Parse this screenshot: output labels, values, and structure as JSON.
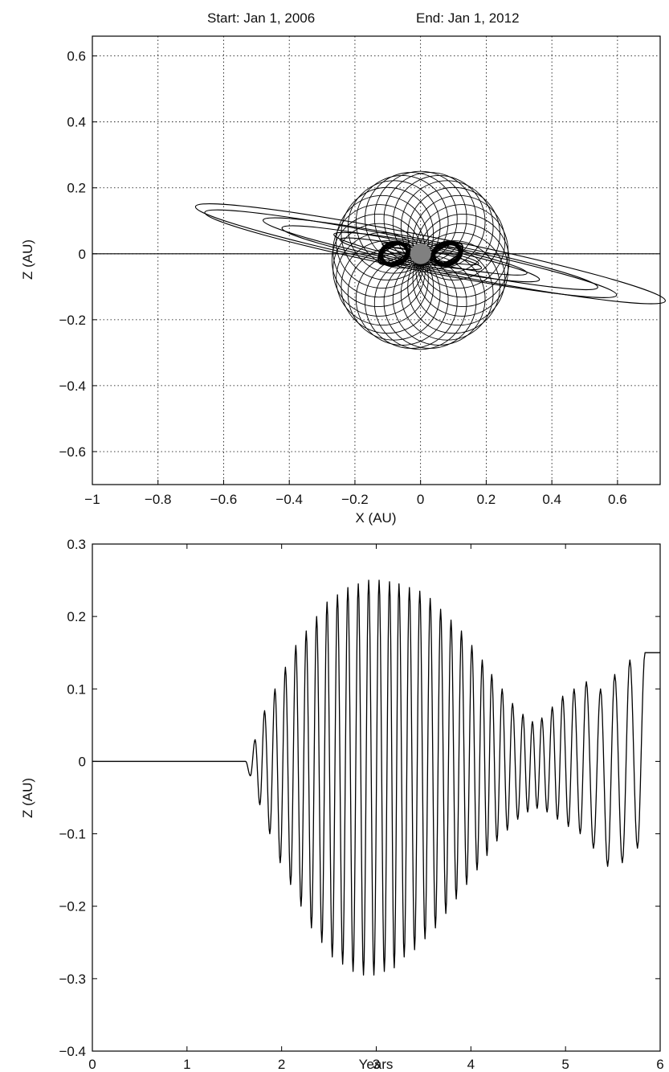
{
  "header": {
    "start": "Start: Jan 1, 2006",
    "end": "End: Jan 1, 2012"
  },
  "chart_data": [
    {
      "type": "line",
      "xlabel": "X (AU)",
      "ylabel": "Z (AU)",
      "xlim": [
        -1.0,
        0.73
      ],
      "ylim": [
        -0.7,
        0.66
      ],
      "xticks": [
        -1,
        -0.8,
        -0.6,
        -0.4,
        -0.2,
        0,
        0.2,
        0.4,
        0.6
      ],
      "xtick_labels": [
        "−1",
        "−0.8",
        "−0.6",
        "−0.4",
        "−0.2",
        "0",
        "0.2",
        "0.4",
        "0.6"
      ],
      "yticks": [
        -0.6,
        -0.4,
        -0.2,
        0,
        0.2,
        0.4,
        0.6
      ],
      "ytick_labels": [
        "−0.6",
        "−0.4",
        "−0.2",
        "0",
        "0.2",
        "0.4",
        "0.6"
      ],
      "grid": true,
      "grid_style": "dotted",
      "series": [
        {
          "name": "",
          "kind": "polar-rosette",
          "center": [
            0,
            -0.02
          ],
          "outer_radius": 0.27,
          "loops": 28,
          "color": "#000000"
        },
        {
          "name": "",
          "kind": "spiral-ellipses",
          "line_points": [
            [
              -0.73,
              0.15
            ],
            [
              0.72,
              -0.14
            ]
          ],
          "color": "#000000"
        }
      ],
      "central_body": {
        "x": 0,
        "y": 0,
        "color": "#808080"
      },
      "color_line": "#000000"
    },
    {
      "type": "line",
      "xlabel": "Years",
      "ylabel": "Z (AU)",
      "xlim": [
        0,
        6
      ],
      "ylim": [
        -0.4,
        0.3
      ],
      "xticks": [
        0,
        1,
        2,
        3,
        4,
        5,
        6
      ],
      "xtick_labels": [
        "0",
        "1",
        "2",
        "3",
        "4",
        "5",
        "6"
      ],
      "yticks": [
        -0.4,
        -0.3,
        -0.2,
        -0.1,
        0,
        0.1,
        0.2,
        0.3
      ],
      "ytick_labels": [
        "−0.4",
        "−0.3",
        "−0.2",
        "−0.1",
        "0",
        "0.1",
        "0.2",
        "0.3"
      ],
      "grid": false,
      "series": [
        {
          "name": "",
          "flat_until": 1.62,
          "oscillation_peaks_x": [
            1.72,
            1.82,
            1.93,
            2.04,
            2.15,
            2.26,
            2.37,
            2.48,
            2.59,
            2.7,
            2.81,
            2.92,
            3.03,
            3.14,
            3.24,
            3.35,
            3.46,
            3.57,
            3.68,
            3.79,
            3.9,
            4.01,
            4.12,
            4.22,
            4.33,
            4.44,
            4.55,
            4.65,
            4.75,
            4.86,
            4.97,
            5.09,
            5.22,
            5.37,
            5.52,
            5.68,
            5.84
          ],
          "envelope_max": [
            0.03,
            0.07,
            0.1,
            0.13,
            0.16,
            0.18,
            0.2,
            0.22,
            0.23,
            0.24,
            0.245,
            0.25,
            0.25,
            0.248,
            0.245,
            0.24,
            0.235,
            0.225,
            0.21,
            0.195,
            0.18,
            0.16,
            0.14,
            0.12,
            0.1,
            0.08,
            0.065,
            0.055,
            0.06,
            0.075,
            0.09,
            0.1,
            0.11,
            0.1,
            0.12,
            0.14,
            0.15
          ],
          "envelope_min": [
            -0.02,
            -0.06,
            -0.1,
            -0.14,
            -0.17,
            -0.2,
            -0.23,
            -0.25,
            -0.27,
            -0.28,
            -0.29,
            -0.295,
            -0.295,
            -0.29,
            -0.285,
            -0.27,
            -0.26,
            -0.245,
            -0.23,
            -0.21,
            -0.19,
            -0.17,
            -0.15,
            -0.13,
            -0.11,
            -0.095,
            -0.08,
            -0.07,
            -0.065,
            -0.07,
            -0.08,
            -0.09,
            -0.1,
            -0.12,
            -0.145,
            -0.14,
            -0.12
          ],
          "end_value": 0.15,
          "color": "#000000"
        }
      ]
    }
  ]
}
